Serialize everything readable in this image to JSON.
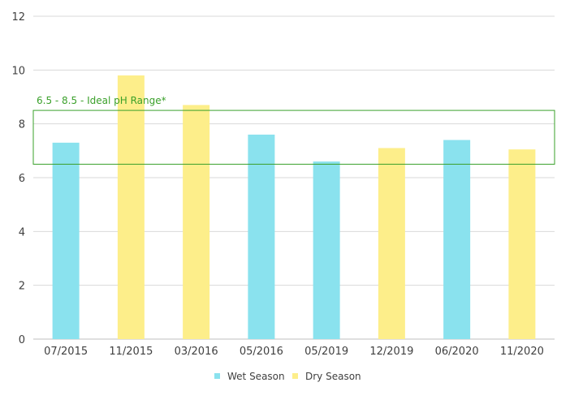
{
  "chart_data": {
    "type": "bar",
    "categories": [
      "07/2015",
      "11/2015",
      "03/2016",
      "05/2016",
      "05/2019",
      "12/2019",
      "06/2020",
      "11/2020"
    ],
    "values": [
      7.3,
      9.8,
      8.7,
      7.6,
      6.6,
      7.1,
      7.4,
      7.05
    ],
    "season": [
      "Wet Season",
      "Dry Season",
      "Dry Season",
      "Wet Season",
      "Wet Season",
      "Dry Season",
      "Wet Season",
      "Dry Season"
    ],
    "ylim": [
      0,
      12
    ],
    "yticks": [
      0,
      2,
      4,
      6,
      8,
      10,
      12
    ],
    "grid": true,
    "legend": {
      "position": "bottom",
      "entries": [
        {
          "name": "Wet Season",
          "color": "#8ae2ee"
        },
        {
          "name": "Dry Season",
          "color": "#fdee8a"
        }
      ]
    },
    "annotation": {
      "label": "6.5 - 8.5 - Ideal pH Range*",
      "range": [
        6.5,
        8.5
      ],
      "color": "#3aa02a"
    }
  }
}
